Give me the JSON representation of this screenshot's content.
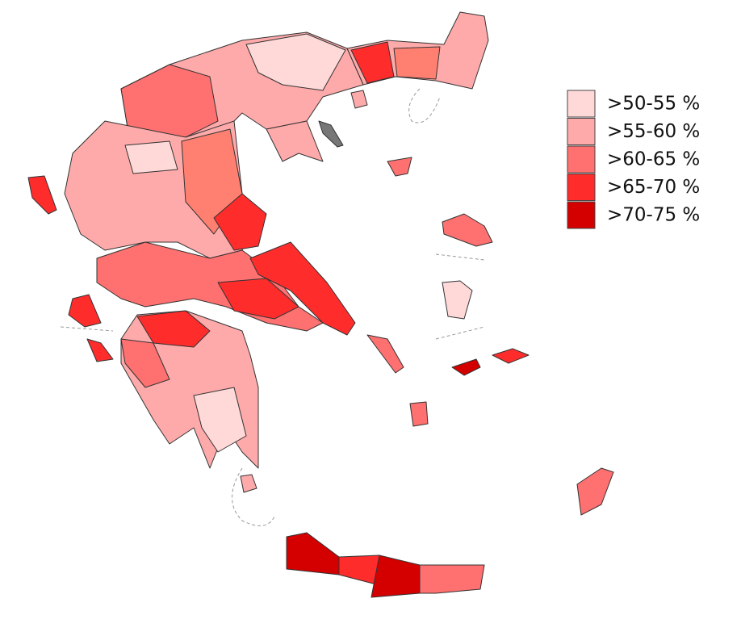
{
  "legend": {
    "items": [
      {
        "label": ">50-55 %",
        "color": "#ffd8d8"
      },
      {
        "label": ">55-60 %",
        "color": "#ffaaaa"
      },
      {
        "label": ">60-65 %",
        "color": "#ff7070"
      },
      {
        "label": ">65-70 %",
        "color": "#ff2c2c"
      },
      {
        "label": ">70-75 %",
        "color": "#d40000"
      }
    ]
  }
}
